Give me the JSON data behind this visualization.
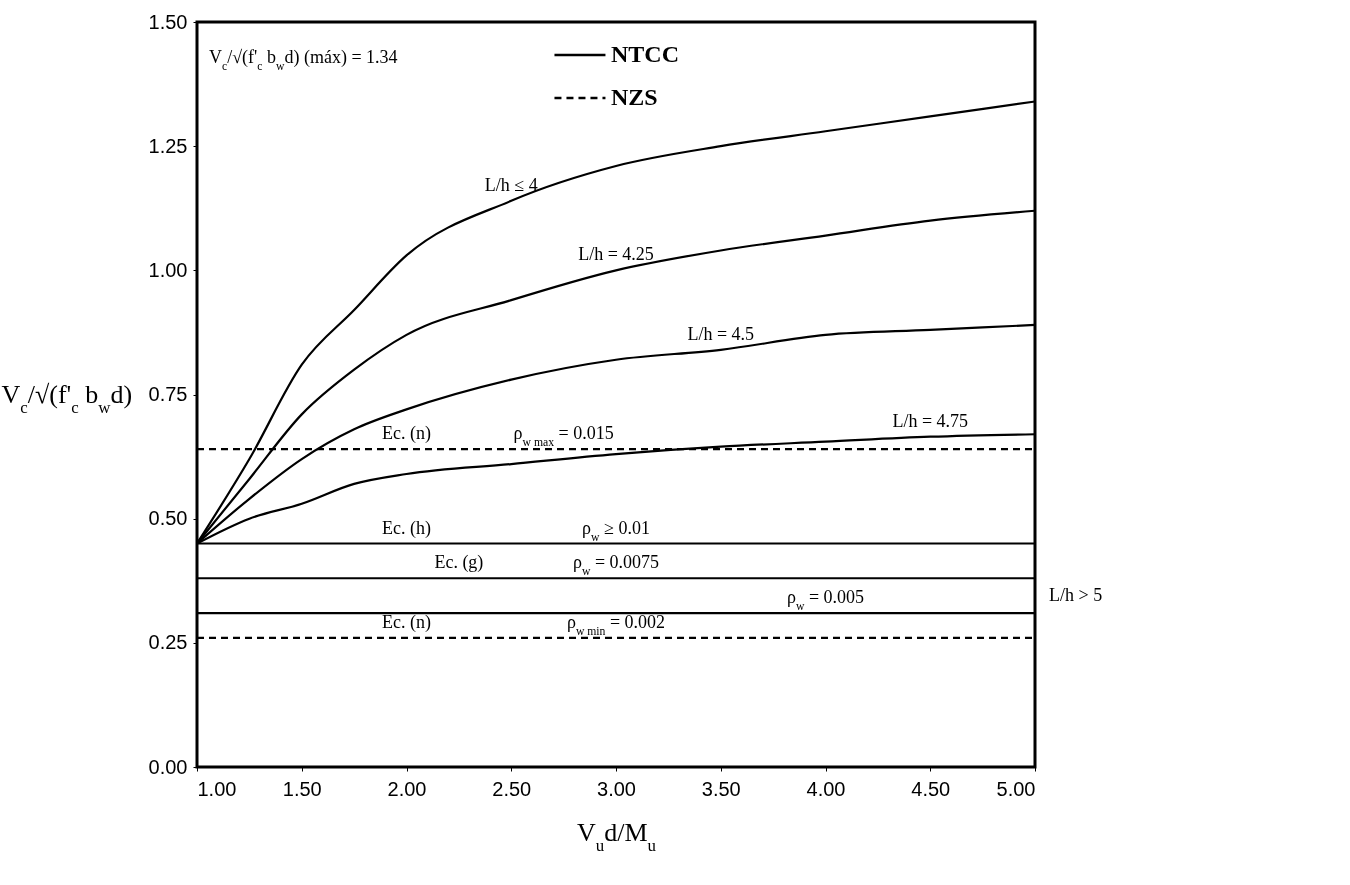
{
  "chart_data": {
    "type": "line",
    "xlabel": "V$_{u}$d/M$_{u}$",
    "ylabel": "V$_{c}$/√(f'$_{c}$ b$_{w}$d)",
    "x": [
      1,
      1.25,
      1.5,
      1.75,
      2,
      2.5,
      3,
      3.5,
      4,
      4.5,
      5
    ],
    "xlim": [
      1,
      5
    ],
    "xticks": [
      {
        "value": 1,
        "label": "1.00"
      },
      {
        "value": 1.5,
        "label": "1.50"
      },
      {
        "value": 2,
        "label": "2.00"
      },
      {
        "value": 2.5,
        "label": "2.50"
      },
      {
        "value": 3,
        "label": "3.00"
      },
      {
        "value": 3.5,
        "label": "3.50"
      },
      {
        "value": 4,
        "label": "4.00"
      },
      {
        "value": 4.5,
        "label": "4.50"
      },
      {
        "value": 5,
        "label": "5.00"
      }
    ],
    "ylim": [
      0,
      1.5
    ],
    "yticks": [
      {
        "value": 0,
        "label": "0.00"
      },
      {
        "value": 0.25,
        "label": "0.25"
      },
      {
        "value": 0.5,
        "label": "0.50"
      },
      {
        "value": 0.75,
        "label": "0.75"
      },
      {
        "value": 1,
        "label": "1.00"
      },
      {
        "value": 1.25,
        "label": "1.25"
      },
      {
        "value": 1.5,
        "label": "1.50"
      }
    ],
    "series": [
      {
        "name": "NTCC",
        "color": "#000000",
        "line_style": "solid",
        "values": [
          0.45,
          0.62,
          0.81,
          0.92,
          1.03,
          1.14,
          1.21,
          1.25,
          1.28,
          1.31,
          1.34
        ]
      },
      {
        "color": "#000000",
        "line_style": "solid",
        "values": [
          0.45,
          0.58,
          0.71,
          0.8,
          0.87,
          0.94,
          1.0,
          1.04,
          1.07,
          1.1,
          1.12
        ]
      },
      {
        "color": "#000000",
        "line_style": "solid",
        "values": [
          0.45,
          0.54,
          0.62,
          0.68,
          0.72,
          0.78,
          0.82,
          0.84,
          0.87,
          0.88,
          0.89
        ]
      },
      {
        "color": "#000000",
        "line_style": "solid",
        "values": [
          0.45,
          0.5,
          0.53,
          0.57,
          0.59,
          0.61,
          0.63,
          0.645,
          0.655,
          0.665,
          0.67
        ]
      },
      {
        "color": "#000000",
        "line_style": "solid",
        "values": [
          0.45,
          0.45,
          0.45,
          0.45,
          0.45,
          0.45,
          0.45,
          0.45,
          0.45,
          0.45,
          0.45
        ]
      },
      {
        "color": "#000000",
        "line_style": "solid",
        "values": [
          0.38,
          0.38,
          0.38,
          0.38,
          0.38,
          0.38,
          0.38,
          0.38,
          0.38,
          0.38,
          0.38
        ]
      },
      {
        "color": "#000000",
        "line_style": "solid",
        "values": [
          0.31,
          0.31,
          0.31,
          0.31,
          0.31,
          0.31,
          0.31,
          0.31,
          0.31,
          0.31,
          0.31
        ]
      },
      {
        "name": "NZS",
        "color": "#000000",
        "line_style": "dashed",
        "values": [
          0.64,
          0.64,
          0.64,
          0.64,
          0.64,
          0.64,
          0.64,
          0.64,
          0.64,
          0.64,
          0.64
        ]
      },
      {
        "color": "#000000",
        "line_style": "dashed",
        "values": [
          0.26,
          0.26,
          0.26,
          0.26,
          0.26,
          0.26,
          0.26,
          0.26,
          0.26,
          0.26,
          0.26
        ]
      }
    ],
    "legend": "top",
    "grid": false,
    "marker": "none",
    "annotations": [
      "V$_{c}$/√(f'$_{c}$ b$_{w}$d) (máx) = 1.34",
      {
        "text": "L/h ≤ 4",
        "x": 2.5,
        "y": 1.14
      },
      {
        "text": "L/h = 4.25",
        "x": 3,
        "y": 1.0
      },
      {
        "text": "L/h = 4.5",
        "x": 3.5,
        "y": 0.84
      },
      {
        "text": "L/h = 4.75",
        "x": 4.5,
        "y": 0.665
      },
      {
        "text": "Ec. (n)",
        "x": 2,
        "y": 0.64
      },
      {
        "text": "ρ$_{w max}$ = 0.015",
        "x": 2.75,
        "y": 0.64
      },
      {
        "text": "Ec. (h)",
        "x": 2,
        "y": 0.45
      },
      {
        "text": "ρ$_{w}$ ≥ 0.01",
        "x": 3,
        "y": 0.45
      },
      {
        "text": "Ec. (g)",
        "x": 2.25,
        "y": 0.38
      },
      {
        "text": "ρ$_{w}$ = 0.0075",
        "x": 3,
        "y": 0.38
      },
      {
        "text": "ρ$_{w}$ = 0.005",
        "x": 4,
        "y": 0.31
      },
      {
        "text": "Ec. (n)",
        "x": 2,
        "y": 0.26
      },
      {
        "text": "ρ$_{w min}$ = 0.002",
        "x": 3,
        "y": 0.26
      },
      "L/h > 5"
    ]
  }
}
